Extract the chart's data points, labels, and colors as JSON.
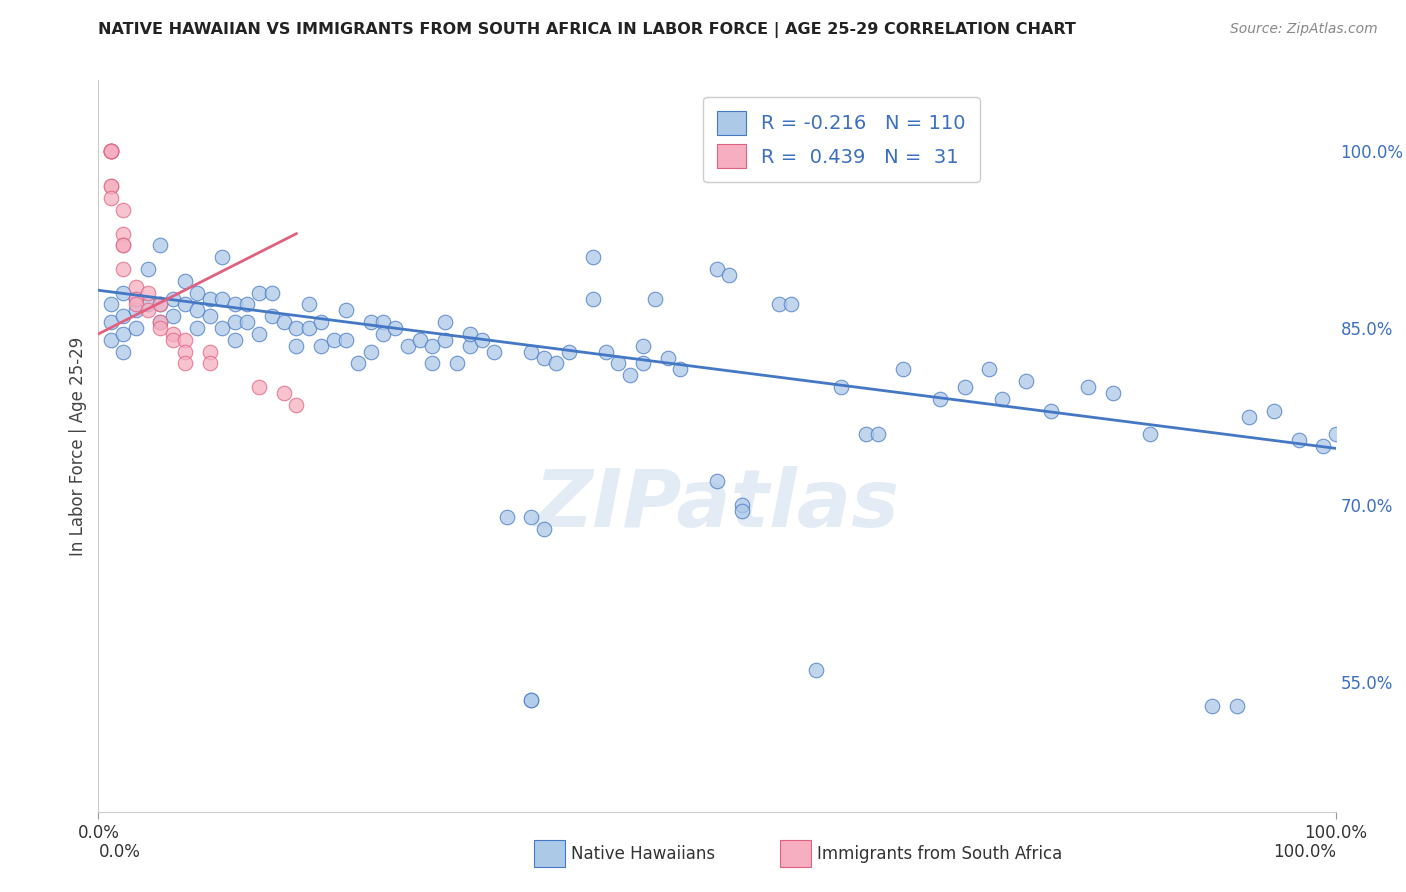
{
  "title": "NATIVE HAWAIIAN VS IMMIGRANTS FROM SOUTH AFRICA IN LABOR FORCE | AGE 25-29 CORRELATION CHART",
  "source": "Source: ZipAtlas.com",
  "ylabel": "In Labor Force | Age 25-29",
  "legend_blue_r": "-0.216",
  "legend_blue_n": "110",
  "legend_pink_r": "0.439",
  "legend_pink_n": "31",
  "blue_color": "#adc9e8",
  "pink_color": "#f5afc0",
  "blue_line_color": "#4478c4",
  "pink_line_color": "#e06080",
  "legend_text_color": "#3b6fbf",
  "watermark": "ZIPatlas",
  "blue_scatter_x": [
    0.01,
    0.01,
    0.01,
    0.02,
    0.02,
    0.02,
    0.02,
    0.03,
    0.03,
    0.03,
    0.04,
    0.04,
    0.05,
    0.05,
    0.05,
    0.06,
    0.06,
    0.07,
    0.07,
    0.08,
    0.08,
    0.08,
    0.09,
    0.09,
    0.1,
    0.1,
    0.1,
    0.11,
    0.11,
    0.11,
    0.12,
    0.12,
    0.13,
    0.13,
    0.14,
    0.14,
    0.15,
    0.16,
    0.16,
    0.17,
    0.17,
    0.18,
    0.18,
    0.19,
    0.2,
    0.2,
    0.21,
    0.22,
    0.22,
    0.23,
    0.23,
    0.24,
    0.25,
    0.26,
    0.27,
    0.27,
    0.28,
    0.28,
    0.29,
    0.3,
    0.3,
    0.31,
    0.32,
    0.33,
    0.35,
    0.35,
    0.36,
    0.37,
    0.38,
    0.4,
    0.4,
    0.41,
    0.42,
    0.43,
    0.44,
    0.44,
    0.45,
    0.46,
    0.47,
    0.5,
    0.51,
    0.52,
    0.52,
    0.55,
    0.56,
    0.58,
    0.6,
    0.62,
    0.63,
    0.65,
    0.68,
    0.7,
    0.72,
    0.73,
    0.75,
    0.77,
    0.8,
    0.82,
    0.85,
    0.9,
    0.92,
    0.93,
    0.95,
    0.97,
    0.99,
    1.0,
    0.35,
    0.35,
    0.36,
    0.5
  ],
  "blue_scatter_y": [
    0.855,
    0.87,
    0.84,
    0.86,
    0.88,
    0.845,
    0.83,
    0.875,
    0.865,
    0.85,
    0.9,
    0.87,
    0.92,
    0.87,
    0.855,
    0.875,
    0.86,
    0.89,
    0.87,
    0.865,
    0.88,
    0.85,
    0.875,
    0.86,
    0.91,
    0.875,
    0.85,
    0.87,
    0.855,
    0.84,
    0.87,
    0.855,
    0.88,
    0.845,
    0.88,
    0.86,
    0.855,
    0.85,
    0.835,
    0.87,
    0.85,
    0.855,
    0.835,
    0.84,
    0.865,
    0.84,
    0.82,
    0.855,
    0.83,
    0.855,
    0.845,
    0.85,
    0.835,
    0.84,
    0.835,
    0.82,
    0.84,
    0.855,
    0.82,
    0.835,
    0.845,
    0.84,
    0.83,
    0.69,
    0.83,
    0.69,
    0.825,
    0.82,
    0.83,
    0.91,
    0.875,
    0.83,
    0.82,
    0.81,
    0.835,
    0.82,
    0.875,
    0.825,
    0.815,
    0.9,
    0.895,
    0.7,
    0.695,
    0.87,
    0.87,
    0.56,
    0.8,
    0.76,
    0.76,
    0.815,
    0.79,
    0.8,
    0.815,
    0.79,
    0.805,
    0.78,
    0.8,
    0.795,
    0.76,
    0.53,
    0.53,
    0.775,
    0.78,
    0.755,
    0.75,
    0.76,
    0.535,
    0.535,
    0.68,
    0.72
  ],
  "pink_scatter_x": [
    0.01,
    0.01,
    0.01,
    0.01,
    0.01,
    0.01,
    0.01,
    0.01,
    0.02,
    0.02,
    0.02,
    0.02,
    0.02,
    0.03,
    0.03,
    0.03,
    0.04,
    0.04,
    0.05,
    0.05,
    0.05,
    0.06,
    0.06,
    0.07,
    0.07,
    0.07,
    0.09,
    0.09,
    0.13,
    0.15,
    0.16
  ],
  "pink_scatter_y": [
    1.0,
    1.0,
    1.0,
    1.0,
    1.0,
    0.97,
    0.97,
    0.96,
    0.95,
    0.93,
    0.92,
    0.92,
    0.9,
    0.885,
    0.875,
    0.87,
    0.88,
    0.865,
    0.87,
    0.855,
    0.85,
    0.845,
    0.84,
    0.84,
    0.83,
    0.82,
    0.83,
    0.82,
    0.8,
    0.795,
    0.785
  ],
  "blue_line_x": [
    0.0,
    1.0
  ],
  "blue_line_y": [
    0.882,
    0.748
  ],
  "pink_line_x": [
    0.0,
    0.16
  ],
  "pink_line_y": [
    0.845,
    0.93
  ],
  "xlim": [
    0.0,
    1.0
  ],
  "ylim": [
    0.44,
    1.06
  ],
  "y_ticks": [
    0.55,
    0.7,
    0.85,
    1.0
  ],
  "y_tick_labels": [
    "55.0%",
    "70.0%",
    "85.0%",
    "100.0%"
  ],
  "background_color": "#ffffff",
  "grid_color": "#dddddd"
}
